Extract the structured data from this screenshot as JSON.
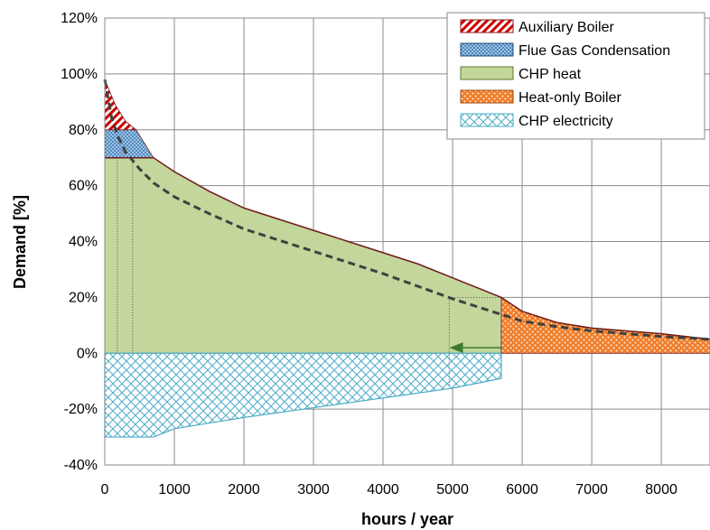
{
  "chart_data": {
    "type": "area",
    "title": "",
    "xlabel": "hours / year",
    "ylabel": "Demand [%]",
    "xlim": [
      0,
      8700
    ],
    "ylim": [
      -40,
      120
    ],
    "x_ticks": [
      0,
      1000,
      2000,
      3000,
      4000,
      5000,
      6000,
      7000,
      8000
    ],
    "y_ticks": [
      -40,
      -20,
      0,
      20,
      40,
      60,
      80,
      100,
      120
    ],
    "y_tick_labels": [
      "-40%",
      "-20%",
      "0%",
      "20%",
      "40%",
      "60%",
      "80%",
      "100%",
      "120%"
    ],
    "grid": true,
    "legend_position": "top-right",
    "series": [
      {
        "name": "Auxiliary Boiler",
        "color": "#cc0000",
        "pattern": "diagonal-hatch",
        "x": [
          0,
          50,
          150,
          300,
          450
        ],
        "y_low": [
          80,
          80,
          80,
          80,
          80
        ],
        "y_high": [
          98,
          95,
          89,
          83,
          80
        ]
      },
      {
        "name": "Flue Gas Condensation",
        "color": "#2e75b6",
        "pattern": "dots",
        "x": [
          0,
          450,
          700
        ],
        "y_low": [
          70,
          70,
          70
        ],
        "y_high": [
          80,
          80,
          70
        ]
      },
      {
        "name": "CHP heat",
        "color": "#c3d69b",
        "pattern": "solid",
        "x": [
          0,
          700,
          1000,
          1500,
          2000,
          2500,
          3000,
          3500,
          4000,
          4500,
          5000,
          5400,
          5700
        ],
        "y_low": [
          0,
          0,
          0,
          0,
          0,
          0,
          0,
          0,
          0,
          0,
          0,
          0,
          0
        ],
        "y_high": [
          70,
          70,
          65,
          58,
          52,
          48,
          44,
          40,
          36,
          32,
          27,
          23,
          20
        ]
      },
      {
        "name": "Heat-only Boiler",
        "color": "#f07d28",
        "pattern": "dots",
        "x": [
          5700,
          6000,
          6500,
          7000,
          7500,
          8000,
          8700
        ],
        "y_low": [
          0,
          0,
          0,
          0,
          0,
          0,
          0
        ],
        "y_high": [
          20,
          15,
          11,
          9,
          8,
          7,
          5
        ]
      },
      {
        "name": "CHP electricity",
        "color": "#4bacc6",
        "pattern": "cross-hatch",
        "x": [
          0,
          700,
          1000,
          2000,
          3000,
          4000,
          5000,
          5700
        ],
        "y_low": [
          -30,
          -30,
          -27,
          -23,
          -19.5,
          -16,
          -12.5,
          -9
        ],
        "y_high": [
          0,
          0,
          0,
          0,
          0,
          0,
          0,
          0
        ]
      }
    ],
    "dashed_curve": {
      "x": [
        0,
        100,
        200,
        300,
        500,
        700,
        1000,
        1500,
        2000,
        2500,
        3000,
        3500,
        4000,
        4500,
        5000,
        5500,
        6000,
        6500,
        7000,
        7500,
        8000,
        8700
      ],
      "y": [
        98,
        84,
        77,
        72,
        66,
        61,
        56,
        50,
        44.5,
        40.5,
        36.5,
        32.5,
        28.5,
        24,
        19.5,
        15.5,
        11.5,
        9.5,
        8,
        7,
        6,
        5
      ]
    },
    "reference_lines": {
      "vertical_x": [
        180,
        400,
        4950
      ],
      "dashed_horizontal_y": 20,
      "arrow": {
        "from_x": 5700,
        "to_x": 4950,
        "y": 2
      }
    }
  }
}
